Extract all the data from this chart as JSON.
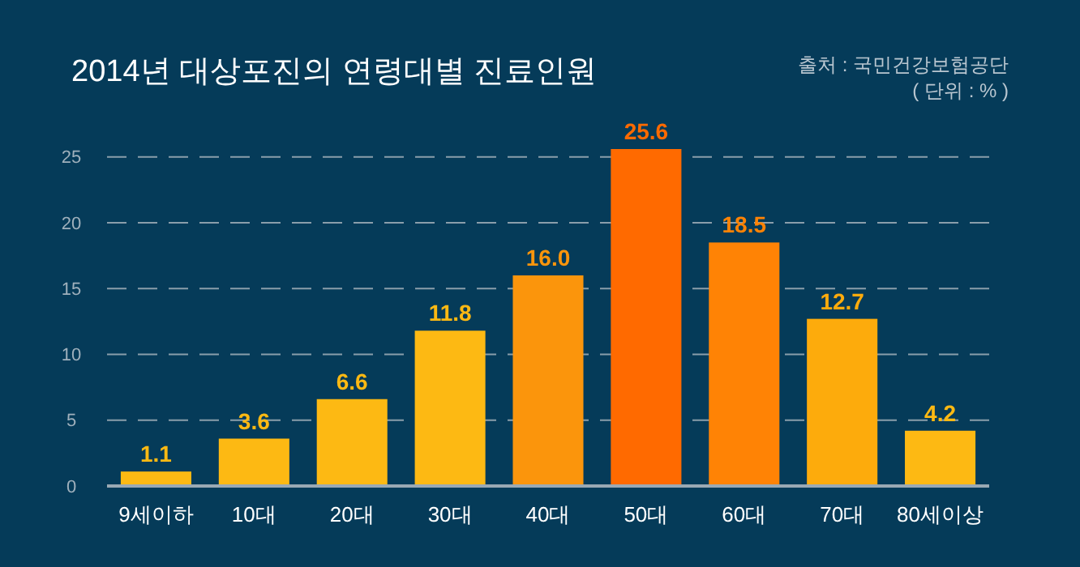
{
  "chart_data": {
    "type": "bar",
    "title": "2014년 대상포진의 연령대별 진료인원",
    "annotations": [
      "출처 : 국민건강보험공단",
      "( 단위 : % )"
    ],
    "categories": [
      "9세이하",
      "10대",
      "20대",
      "30대",
      "40대",
      "50대",
      "60대",
      "70대",
      "80세이상"
    ],
    "values": [
      1.1,
      3.6,
      6.6,
      11.8,
      16.0,
      25.6,
      18.5,
      12.7,
      4.2
    ],
    "value_labels": [
      "1.1",
      "3.6",
      "6.6",
      "11.8",
      "16.0",
      "25.6",
      "18.5",
      "12.7",
      "4.2"
    ],
    "colors": [
      "#fdb913",
      "#fdb913",
      "#fdb913",
      "#fdb913",
      "#fb950c",
      "#ff6a00",
      "#ff8305",
      "#fdab0c",
      "#fdb913"
    ],
    "ylim": [
      0,
      25.6
    ],
    "yticks": [
      0,
      5,
      10,
      15,
      20,
      25
    ],
    "grid": "y"
  }
}
